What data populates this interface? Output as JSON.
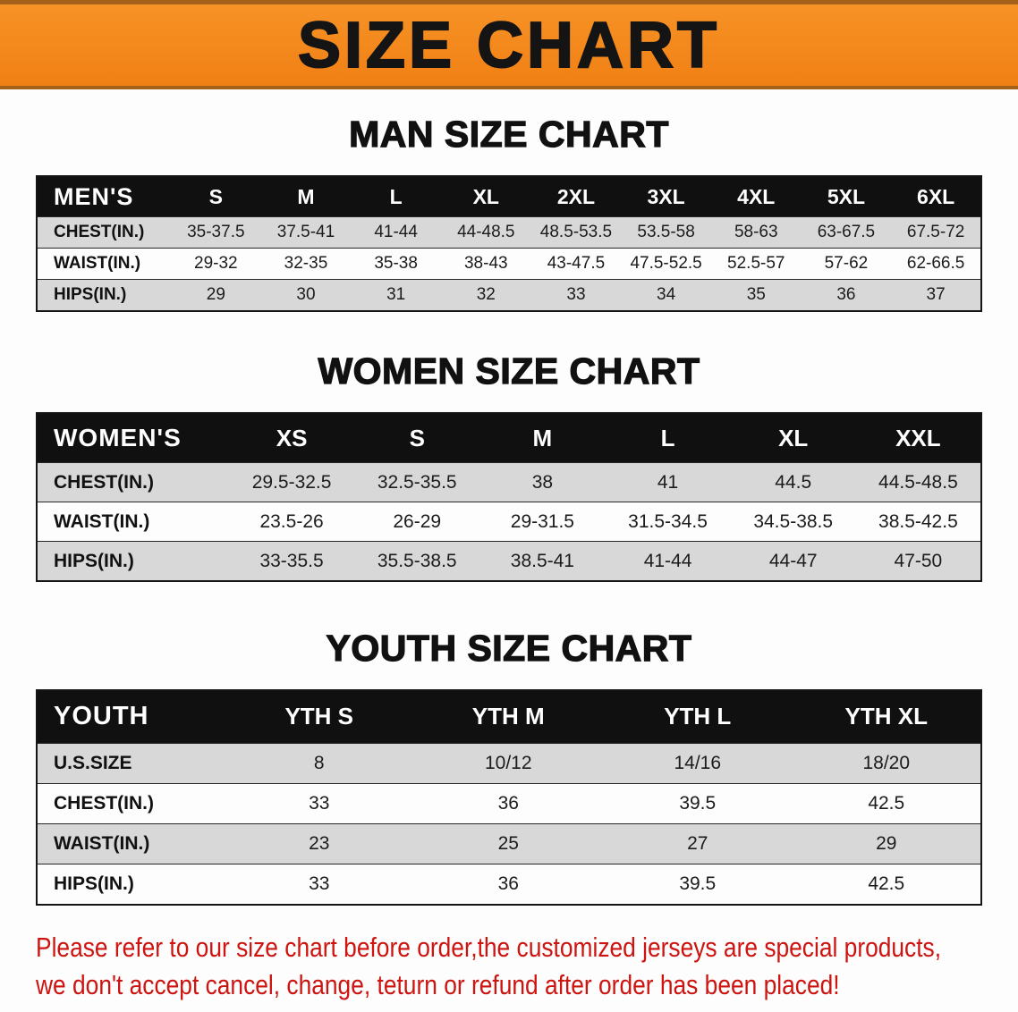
{
  "banner": {
    "title": "SIZE CHART"
  },
  "colors": {
    "banner_bg": "#f6861d",
    "banner_border": "#a4611a",
    "header_bg": "#101010",
    "row_alt": "#d8d8d8",
    "disclaimer": "#cd1410"
  },
  "sections": [
    {
      "id": "men",
      "heading": "MAN SIZE CHART",
      "table": {
        "header": [
          "MEN'S",
          "S",
          "M",
          "L",
          "XL",
          "2XL",
          "3XL",
          "4XL",
          "5XL",
          "6XL"
        ],
        "rows": [
          [
            "CHEST(IN.)",
            "35-37.5",
            "37.5-41",
            "41-44",
            "44-48.5",
            "48.5-53.5",
            "53.5-58",
            "58-63",
            "63-67.5",
            "67.5-72"
          ],
          [
            "WAIST(IN.)",
            "29-32",
            "32-35",
            "35-38",
            "38-43",
            "43-47.5",
            "47.5-52.5",
            "52.5-57",
            "57-62",
            "62-66.5"
          ],
          [
            "HIPS(IN.)",
            "29",
            "30",
            "31",
            "32",
            "33",
            "34",
            "35",
            "36",
            "37"
          ]
        ]
      }
    },
    {
      "id": "women",
      "heading": "WOMEN SIZE CHART",
      "table": {
        "header": [
          "WOMEN'S",
          "XS",
          "S",
          "M",
          "L",
          "XL",
          "XXL"
        ],
        "rows": [
          [
            "CHEST(IN.)",
            "29.5-32.5",
            "32.5-35.5",
            "38",
            "41",
            "44.5",
            "44.5-48.5"
          ],
          [
            "WAIST(IN.)",
            "23.5-26",
            "26-29",
            "29-31.5",
            "31.5-34.5",
            "34.5-38.5",
            "38.5-42.5"
          ],
          [
            "HIPS(IN.)",
            "33-35.5",
            "35.5-38.5",
            "38.5-41",
            "41-44",
            "44-47",
            "47-50"
          ]
        ]
      }
    },
    {
      "id": "youth",
      "heading": "YOUTH SIZE CHART",
      "table": {
        "header": [
          "YOUTH",
          "YTH S",
          "YTH M",
          "YTH L",
          "YTH XL"
        ],
        "rows": [
          [
            "U.S.SIZE",
            "8",
            "10/12",
            "14/16",
            "18/20"
          ],
          [
            "CHEST(IN.)",
            "33",
            "36",
            "39.5",
            "42.5"
          ],
          [
            "WAIST(IN.)",
            "23",
            "25",
            "27",
            "29"
          ],
          [
            "HIPS(IN.)",
            "33",
            "36",
            "39.5",
            "42.5"
          ]
        ]
      }
    }
  ],
  "disclaimer": {
    "line1": "Please refer to our size chart before order,the customized jerseys are special products,",
    "line2": "we don't accept cancel, change, teturn or refund after order has been placed!"
  }
}
